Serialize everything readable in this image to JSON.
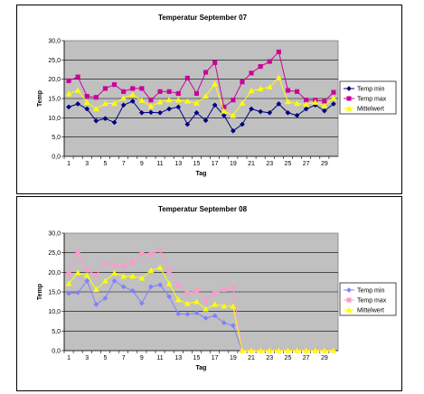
{
  "chart_data": [
    {
      "type": "line",
      "title": "Temperatur September 07",
      "xlabel": "Tag",
      "ylabel": "Temp",
      "ylim": [
        0,
        30
      ],
      "yticks": [
        "0,0",
        "5,0",
        "10,0",
        "15,0",
        "20,0",
        "25,0",
        "30,0"
      ],
      "xticks": [
        "1",
        "3",
        "5",
        "7",
        "9",
        "11",
        "13",
        "15",
        "17",
        "19",
        "21",
        "23",
        "25",
        "27",
        "29"
      ],
      "x": [
        1,
        2,
        3,
        4,
        5,
        6,
        7,
        8,
        9,
        10,
        11,
        12,
        13,
        14,
        15,
        16,
        17,
        18,
        19,
        20,
        21,
        22,
        23,
        24,
        25,
        26,
        27,
        28,
        29,
        30
      ],
      "legend_position": "right",
      "series": [
        {
          "name": "Temp min",
          "color": "#000080",
          "marker": "diamond",
          "values": [
            12.8,
            13.6,
            12.3,
            9.2,
            9.8,
            8.8,
            13.3,
            14.3,
            11.3,
            11.4,
            11.3,
            12.3,
            12.8,
            8.3,
            11.3,
            9.3,
            13.3,
            10.6,
            6.6,
            8.3,
            12.3,
            11.6,
            11.3,
            13.6,
            11.3,
            10.6,
            12.3,
            13.3,
            11.8,
            13.6
          ]
        },
        {
          "name": "Temp max",
          "color": "#cc0099",
          "marker": "square",
          "values": [
            19.6,
            20.6,
            15.6,
            15.3,
            17.6,
            18.6,
            16.8,
            17.6,
            17.6,
            14.6,
            16.8,
            16.8,
            16.3,
            20.3,
            16.3,
            21.8,
            24.3,
            12.8,
            14.6,
            19.3,
            21.6,
            23.3,
            24.6,
            27.1,
            17.1,
            16.8,
            14.6,
            14.6,
            14.3,
            16.6
          ]
        },
        {
          "name": "Mittelwert",
          "color": "#ffff00",
          "marker": "triangle",
          "values": [
            16.2,
            17.1,
            14.0,
            12.3,
            13.7,
            13.7,
            15.1,
            16.0,
            14.5,
            13.0,
            14.1,
            14.6,
            14.6,
            14.3,
            13.8,
            15.6,
            18.8,
            11.7,
            10.6,
            13.8,
            17.0,
            17.5,
            18.0,
            20.4,
            14.2,
            13.7,
            13.5,
            14.0,
            13.1,
            15.1
          ]
        }
      ]
    },
    {
      "type": "line",
      "title": "Temperatur September 08",
      "xlabel": "Tag",
      "ylabel": "Temp",
      "ylim": [
        0,
        30
      ],
      "yticks": [
        "0,0",
        "5,0",
        "10,0",
        "15,0",
        "20,0",
        "25,0",
        "30,0"
      ],
      "xticks": [
        "1",
        "3",
        "5",
        "7",
        "9",
        "11",
        "13",
        "15",
        "17",
        "19",
        "21",
        "23",
        "25",
        "27",
        "29"
      ],
      "x": [
        1,
        2,
        3,
        4,
        5,
        6,
        7,
        8,
        9,
        10,
        11,
        12,
        13,
        14,
        15,
        16,
        17,
        18,
        19,
        20,
        21,
        22,
        23,
        24,
        25,
        26,
        27,
        28,
        29,
        30
      ],
      "legend_position": "right",
      "series": [
        {
          "name": "Temp min",
          "color": "#8080ff",
          "marker": "diamond",
          "values": [
            14.6,
            14.8,
            17.8,
            11.8,
            13.4,
            17.8,
            16.3,
            15.3,
            12.1,
            16.3,
            16.8,
            13.8,
            9.4,
            9.3,
            9.6,
            8.3,
            8.9,
            7.1,
            6.4,
            0,
            0,
            0,
            0,
            0,
            0,
            0,
            0,
            0,
            0,
            0
          ]
        },
        {
          "name": "Temp max",
          "color": "#ff99cc",
          "marker": "square",
          "values": [
            19.6,
            25.1,
            20.6,
            19.3,
            22.3,
            21.8,
            21.6,
            22.6,
            24.8,
            24.6,
            25.6,
            20.3,
            16.6,
            14.6,
            15.3,
            12.8,
            14.6,
            15.6,
            16.1,
            0,
            0,
            0,
            0,
            0,
            0,
            0,
            0,
            0,
            0,
            0
          ]
        },
        {
          "name": "Mittelwert",
          "color": "#ffff00",
          "marker": "triangle",
          "values": [
            17.1,
            19.9,
            19.2,
            15.6,
            17.8,
            19.8,
            19.0,
            19.0,
            18.5,
            20.5,
            21.2,
            17.1,
            13.0,
            12.0,
            12.5,
            10.6,
            11.8,
            11.4,
            11.3,
            0,
            0,
            0,
            0,
            0,
            0,
            0,
            0,
            0,
            0,
            0
          ]
        }
      ]
    }
  ]
}
